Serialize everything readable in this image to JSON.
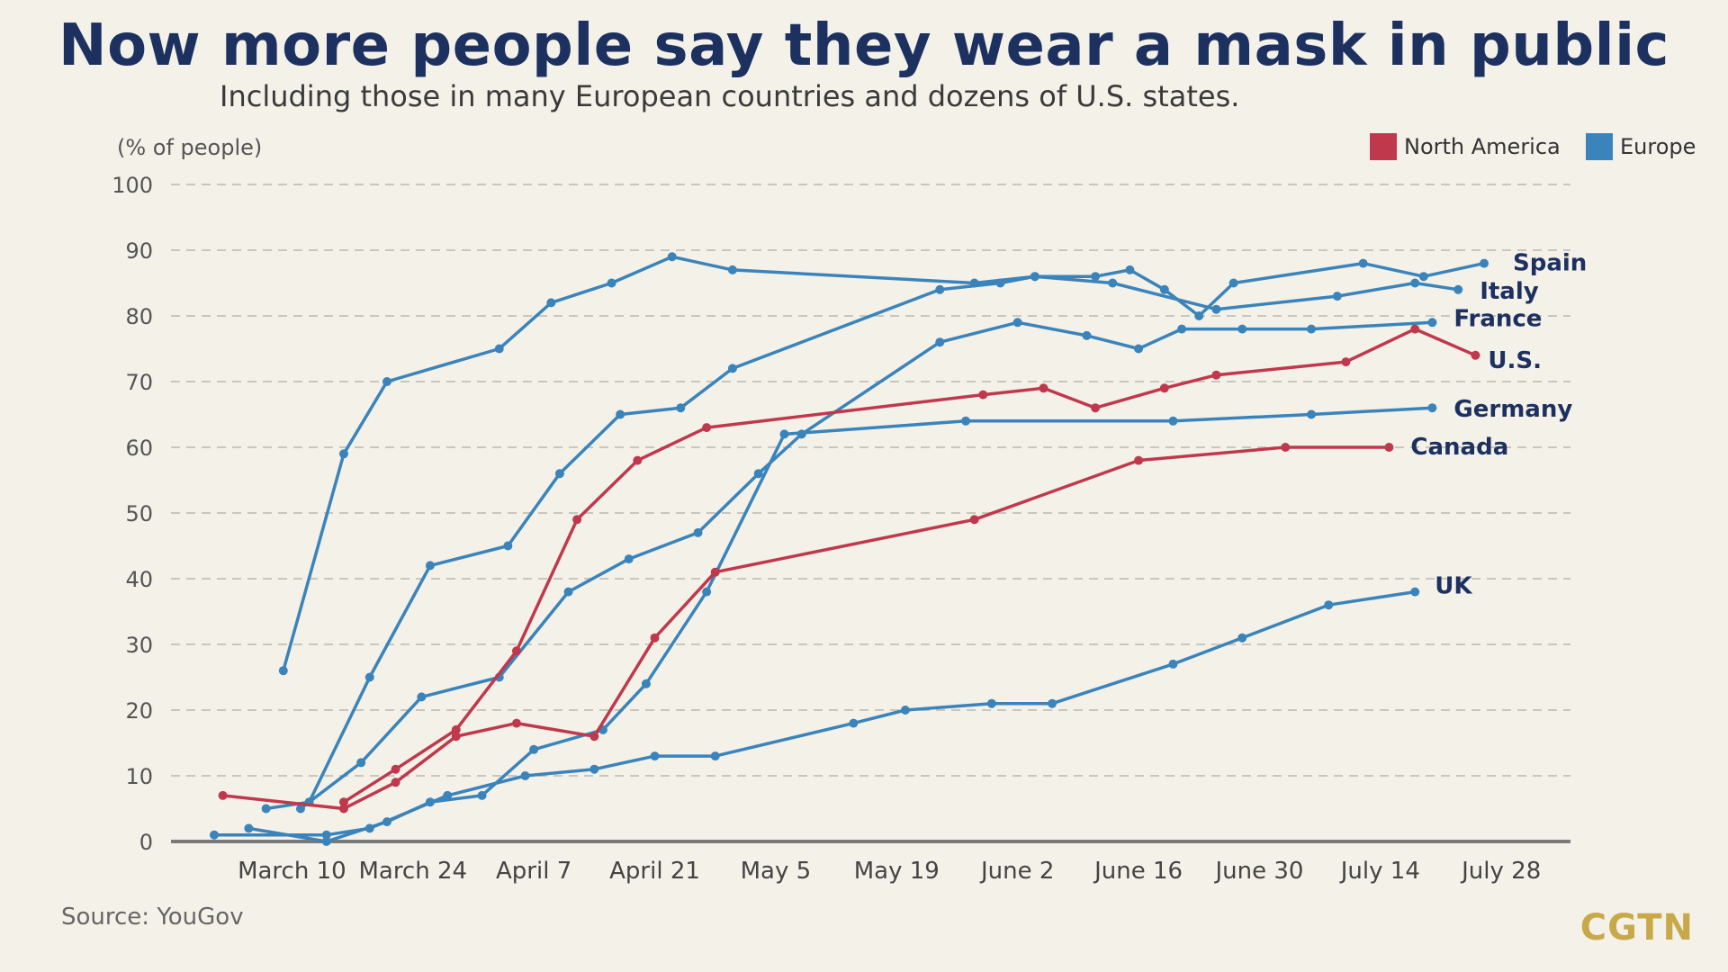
{
  "title": "Now more people say they wear a mask in public",
  "subtitle": "Including those in many European countries and dozens of U.S. states.",
  "source": "Source: YouGov",
  "brand": "CGTN",
  "chart_data": {
    "type": "line",
    "ylabel": "(% of people)",
    "ylim": [
      0,
      100
    ],
    "yticks": [
      0,
      10,
      20,
      30,
      40,
      50,
      60,
      70,
      80,
      90,
      100
    ],
    "x_tick_labels": [
      "March 10",
      "March 24",
      "April 7",
      "April 21",
      "May 5",
      "May 19",
      "June 2",
      "June 16",
      "June 30",
      "July 14",
      "July 28"
    ],
    "xlim": [
      "2020-02-25",
      "2020-08-05"
    ],
    "grid": true,
    "legend": {
      "placement": "top-right",
      "items": [
        {
          "label": "North America",
          "color": "#c0384b"
        },
        {
          "label": "Europe",
          "color": "#3a84bb"
        }
      ]
    },
    "series": [
      {
        "name": "Spain",
        "group": "Europe",
        "color": "#3a84bb",
        "points": [
          [
            "2020-03-09",
            26
          ],
          [
            "2020-03-16",
            59
          ],
          [
            "2020-03-21",
            70
          ],
          [
            "2020-04-03",
            75
          ],
          [
            "2020-04-09",
            82
          ],
          [
            "2020-04-16",
            85
          ],
          [
            "2020-04-23",
            89
          ],
          [
            "2020-04-30",
            87
          ],
          [
            "2020-05-28",
            85
          ],
          [
            "2020-06-04",
            86
          ],
          [
            "2020-06-11",
            86
          ],
          [
            "2020-06-15",
            87
          ],
          [
            "2020-06-19",
            84
          ],
          [
            "2020-06-23",
            80
          ],
          [
            "2020-06-27",
            85
          ],
          [
            "2020-07-12",
            88
          ],
          [
            "2020-07-19",
            86
          ],
          [
            "2020-07-26",
            88
          ]
        ]
      },
      {
        "name": "Italy",
        "group": "Europe",
        "color": "#3a84bb",
        "points": [
          [
            "2020-03-07",
            5
          ],
          [
            "2020-03-12",
            6
          ],
          [
            "2020-03-19",
            25
          ],
          [
            "2020-03-26",
            42
          ],
          [
            "2020-04-04",
            45
          ],
          [
            "2020-04-10",
            56
          ],
          [
            "2020-04-17",
            65
          ],
          [
            "2020-04-24",
            66
          ],
          [
            "2020-04-30",
            72
          ],
          [
            "2020-05-24",
            84
          ],
          [
            "2020-05-31",
            85
          ],
          [
            "2020-06-04",
            86
          ],
          [
            "2020-06-13",
            85
          ],
          [
            "2020-06-25",
            81
          ],
          [
            "2020-07-09",
            83
          ],
          [
            "2020-07-18",
            85
          ],
          [
            "2020-07-23",
            84
          ]
        ]
      },
      {
        "name": "France",
        "group": "Europe",
        "color": "#3a84bb",
        "points": [
          [
            "2020-03-11",
            5
          ],
          [
            "2020-03-18",
            12
          ],
          [
            "2020-03-25",
            22
          ],
          [
            "2020-04-03",
            25
          ],
          [
            "2020-04-11",
            38
          ],
          [
            "2020-04-18",
            43
          ],
          [
            "2020-04-26",
            47
          ],
          [
            "2020-05-03",
            56
          ],
          [
            "2020-05-08",
            62
          ],
          [
            "2020-05-24",
            76
          ],
          [
            "2020-06-02",
            79
          ],
          [
            "2020-06-10",
            77
          ],
          [
            "2020-06-16",
            75
          ],
          [
            "2020-06-21",
            78
          ],
          [
            "2020-06-28",
            78
          ],
          [
            "2020-07-06",
            78
          ],
          [
            "2020-07-20",
            79
          ]
        ]
      },
      {
        "name": "U.S.",
        "group": "North America",
        "color": "#c0384b",
        "points": [
          [
            "2020-03-16",
            6
          ],
          [
            "2020-03-22",
            11
          ],
          [
            "2020-03-29",
            17
          ],
          [
            "2020-04-05",
            29
          ],
          [
            "2020-04-12",
            49
          ],
          [
            "2020-04-19",
            58
          ],
          [
            "2020-04-27",
            63
          ],
          [
            "2020-05-29",
            68
          ],
          [
            "2020-06-05",
            69
          ],
          [
            "2020-06-11",
            66
          ],
          [
            "2020-06-19",
            69
          ],
          [
            "2020-06-25",
            71
          ],
          [
            "2020-07-10",
            73
          ],
          [
            "2020-07-18",
            78
          ],
          [
            "2020-07-25",
            74
          ]
        ]
      },
      {
        "name": "Germany",
        "group": "Europe",
        "color": "#3a84bb",
        "points": [
          [
            "2020-03-05",
            2
          ],
          [
            "2020-03-14",
            0
          ],
          [
            "2020-03-21",
            3
          ],
          [
            "2020-03-26",
            6
          ],
          [
            "2020-04-01",
            7
          ],
          [
            "2020-04-07",
            14
          ],
          [
            "2020-04-15",
            17
          ],
          [
            "2020-04-20",
            24
          ],
          [
            "2020-04-27",
            38
          ],
          [
            "2020-05-06",
            62
          ],
          [
            "2020-05-27",
            64
          ],
          [
            "2020-06-20",
            64
          ],
          [
            "2020-07-06",
            65
          ],
          [
            "2020-07-20",
            66
          ]
        ]
      },
      {
        "name": "Canada",
        "group": "North America",
        "color": "#c0384b",
        "points": [
          [
            "2020-03-02",
            7
          ],
          [
            "2020-03-16",
            5
          ],
          [
            "2020-03-22",
            9
          ],
          [
            "2020-03-29",
            16
          ],
          [
            "2020-04-05",
            18
          ],
          [
            "2020-04-14",
            16
          ],
          [
            "2020-04-21",
            31
          ],
          [
            "2020-04-28",
            41
          ],
          [
            "2020-05-28",
            49
          ],
          [
            "2020-06-16",
            58
          ],
          [
            "2020-07-03",
            60
          ],
          [
            "2020-07-15",
            60
          ]
        ]
      },
      {
        "name": "UK",
        "group": "Europe",
        "color": "#3a84bb",
        "points": [
          [
            "2020-03-01",
            1
          ],
          [
            "2020-03-14",
            1
          ],
          [
            "2020-03-19",
            2
          ],
          [
            "2020-03-28",
            7
          ],
          [
            "2020-04-06",
            10
          ],
          [
            "2020-04-14",
            11
          ],
          [
            "2020-04-21",
            13
          ],
          [
            "2020-04-28",
            13
          ],
          [
            "2020-05-14",
            18
          ],
          [
            "2020-05-20",
            20
          ],
          [
            "2020-05-30",
            21
          ],
          [
            "2020-06-06",
            21
          ],
          [
            "2020-06-20",
            27
          ],
          [
            "2020-06-28",
            31
          ],
          [
            "2020-07-08",
            36
          ],
          [
            "2020-07-18",
            38
          ]
        ]
      }
    ]
  }
}
